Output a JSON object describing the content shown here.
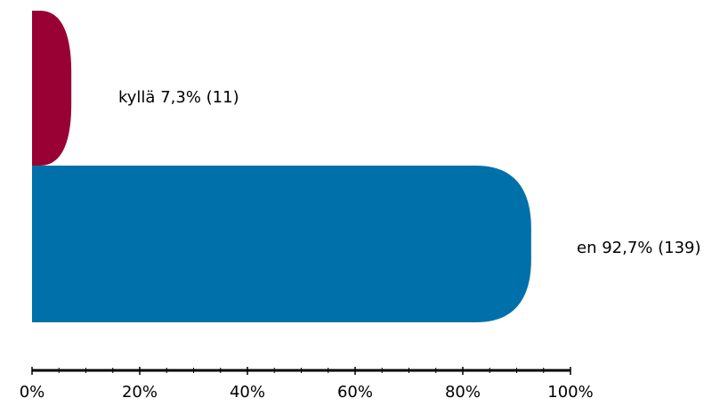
{
  "chart_data": {
    "type": "bar",
    "orientation": "horizontal",
    "title": "",
    "xlabel": "",
    "ylabel": "",
    "xlim": [
      0,
      100
    ],
    "x_tick_labels": [
      "0%",
      "20%",
      "40%",
      "60%",
      "80%",
      "100%"
    ],
    "grid": false,
    "legend": "none",
    "bars": [
      {
        "category": "kyllä",
        "percent": 7.3,
        "count": 11,
        "label": "kyllä 7,3% (11)",
        "color": "#990033"
      },
      {
        "category": "en",
        "percent": 92.7,
        "count": 139,
        "label": "en 92,7% (139)",
        "color": "#0070AA"
      }
    ]
  }
}
